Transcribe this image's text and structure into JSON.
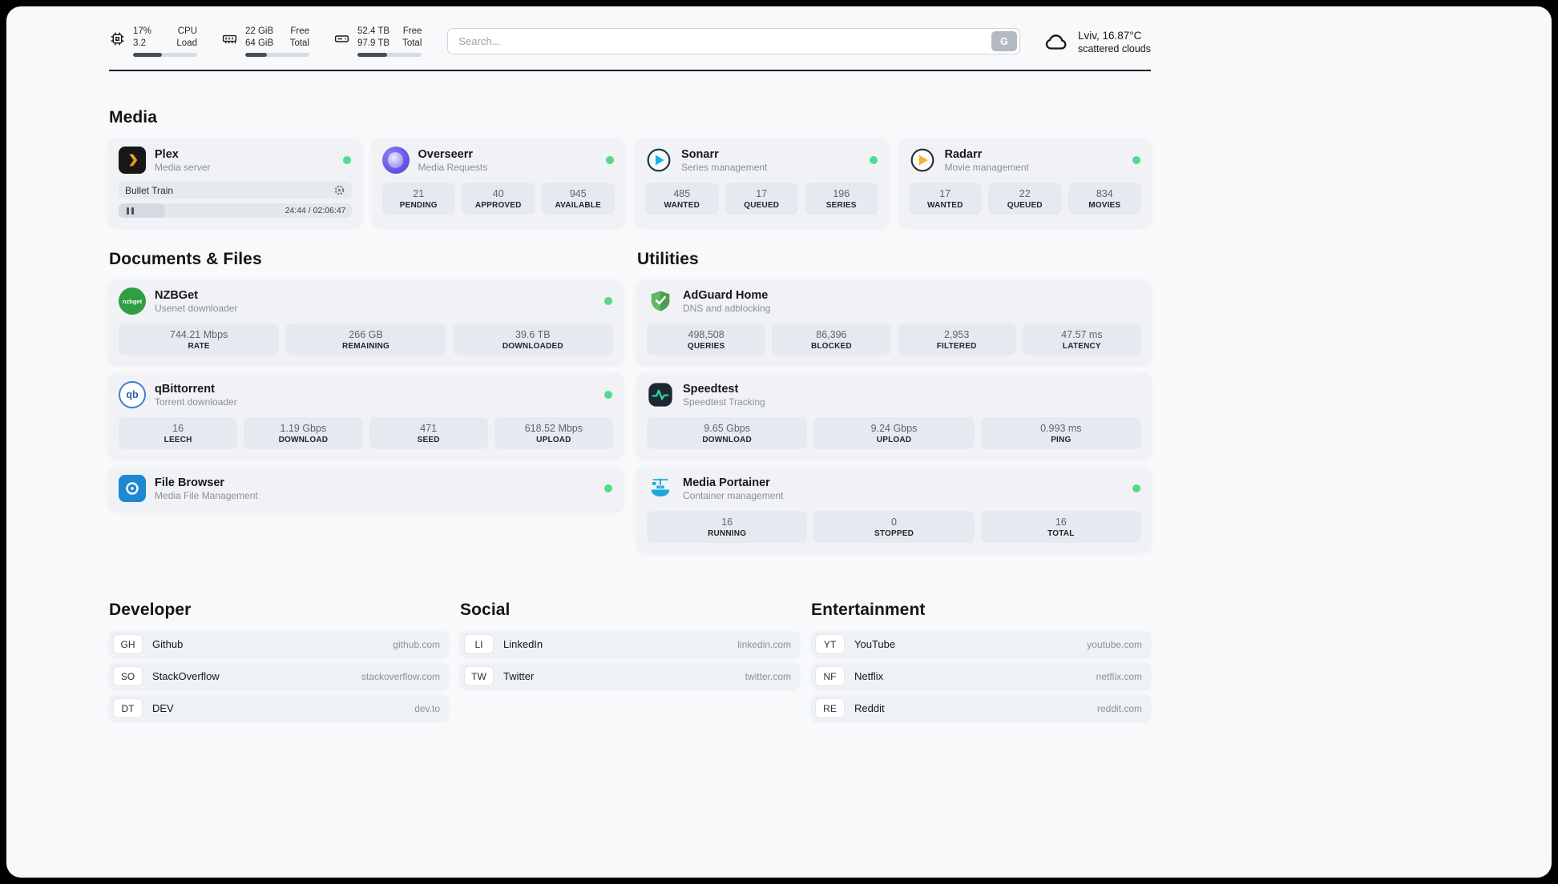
{
  "header": {
    "cpu": {
      "value_top": "17%",
      "value_bottom": "3.2",
      "label_top": "CPU",
      "label_bottom": "Load",
      "bar_percent": 45
    },
    "ram": {
      "value_top": "22 GiB",
      "value_bottom": "64 GiB",
      "label_top": "Free",
      "label_bottom": "Total",
      "bar_percent": 34
    },
    "disk": {
      "value_top": "52.4 TB",
      "value_bottom": "97.9 TB",
      "label_top": "Free",
      "label_bottom": "Total",
      "bar_percent": 46
    },
    "search": {
      "placeholder": "Search...",
      "engine_label": "G"
    },
    "weather": {
      "location": "Lviv, 16.87°C",
      "condition": "scattered clouds"
    }
  },
  "sections": {
    "media": {
      "title": "Media",
      "plex": {
        "name": "Plex",
        "subtitle": "Media server",
        "now_playing": "Bullet Train",
        "time": "24:44 / 02:06:47",
        "progress_percent": 20
      },
      "overseerr": {
        "name": "Overseerr",
        "subtitle": "Media Requests",
        "stats": [
          {
            "value": "21",
            "label": "PENDING"
          },
          {
            "value": "40",
            "label": "APPROVED"
          },
          {
            "value": "945",
            "label": "AVAILABLE"
          }
        ]
      },
      "sonarr": {
        "name": "Sonarr",
        "subtitle": "Series management",
        "stats": [
          {
            "value": "485",
            "label": "WANTED"
          },
          {
            "value": "17",
            "label": "QUEUED"
          },
          {
            "value": "196",
            "label": "SERIES"
          }
        ]
      },
      "radarr": {
        "name": "Radarr",
        "subtitle": "Movie management",
        "stats": [
          {
            "value": "17",
            "label": "WANTED"
          },
          {
            "value": "22",
            "label": "QUEUED"
          },
          {
            "value": "834",
            "label": "MOVIES"
          }
        ]
      }
    },
    "documents": {
      "title": "Documents & Files",
      "nzbget": {
        "name": "NZBGet",
        "subtitle": "Usenet downloader",
        "stats": [
          {
            "value": "744.21 Mbps",
            "label": "RATE"
          },
          {
            "value": "266 GB",
            "label": "REMAINING"
          },
          {
            "value": "39.6 TB",
            "label": "DOWNLOADED"
          }
        ]
      },
      "qbittorrent": {
        "name": "qBittorrent",
        "subtitle": "Torrent downloader",
        "stats": [
          {
            "value": "16",
            "label": "LEECH"
          },
          {
            "value": "1.19 Gbps",
            "label": "DOWNLOAD"
          },
          {
            "value": "471",
            "label": "SEED"
          },
          {
            "value": "618.52 Mbps",
            "label": "UPLOAD"
          }
        ]
      },
      "filebrowser": {
        "name": "File Browser",
        "subtitle": "Media File Management"
      }
    },
    "utilities": {
      "title": "Utilities",
      "adguard": {
        "name": "AdGuard Home",
        "subtitle": "DNS and adblocking",
        "stats": [
          {
            "value": "498,508",
            "label": "QUERIES"
          },
          {
            "value": "86,396",
            "label": "BLOCKED"
          },
          {
            "value": "2,953",
            "label": "FILTERED"
          },
          {
            "value": "47.57 ms",
            "label": "LATENCY"
          }
        ]
      },
      "speedtest": {
        "name": "Speedtest",
        "subtitle": "Speedtest Tracking",
        "stats": [
          {
            "value": "9.65 Gbps",
            "label": "DOWNLOAD"
          },
          {
            "value": "9.24 Gbps",
            "label": "UPLOAD"
          },
          {
            "value": "0.993 ms",
            "label": "PING"
          }
        ]
      },
      "portainer": {
        "name": "Media Portainer",
        "subtitle": "Container management",
        "stats": [
          {
            "value": "16",
            "label": "RUNNING"
          },
          {
            "value": "0",
            "label": "STOPPED"
          },
          {
            "value": "16",
            "label": "TOTAL"
          }
        ]
      }
    },
    "bookmarks": {
      "developer": {
        "title": "Developer",
        "items": [
          {
            "abbr": "GH",
            "name": "Github",
            "url": "github.com"
          },
          {
            "abbr": "SO",
            "name": "StackOverflow",
            "url": "stackoverflow.com"
          },
          {
            "abbr": "DT",
            "name": "DEV",
            "url": "dev.to"
          }
        ]
      },
      "social": {
        "title": "Social",
        "items": [
          {
            "abbr": "LI",
            "name": "LinkedIn",
            "url": "linkedin.com"
          },
          {
            "abbr": "TW",
            "name": "Twitter",
            "url": "twitter.com"
          }
        ]
      },
      "entertainment": {
        "title": "Entertainment",
        "items": [
          {
            "abbr": "YT",
            "name": "YouTube",
            "url": "youtube.com"
          },
          {
            "abbr": "NF",
            "name": "Netflix",
            "url": "netflix.com"
          },
          {
            "abbr": "RE",
            "name": "Reddit",
            "url": "reddit.com"
          }
        ]
      }
    }
  },
  "colors": {
    "status_online": "#54d98c",
    "accent_dark": "#474e56",
    "card_bg": "#f0f2f6",
    "stat_bg": "#e6eaf0"
  }
}
